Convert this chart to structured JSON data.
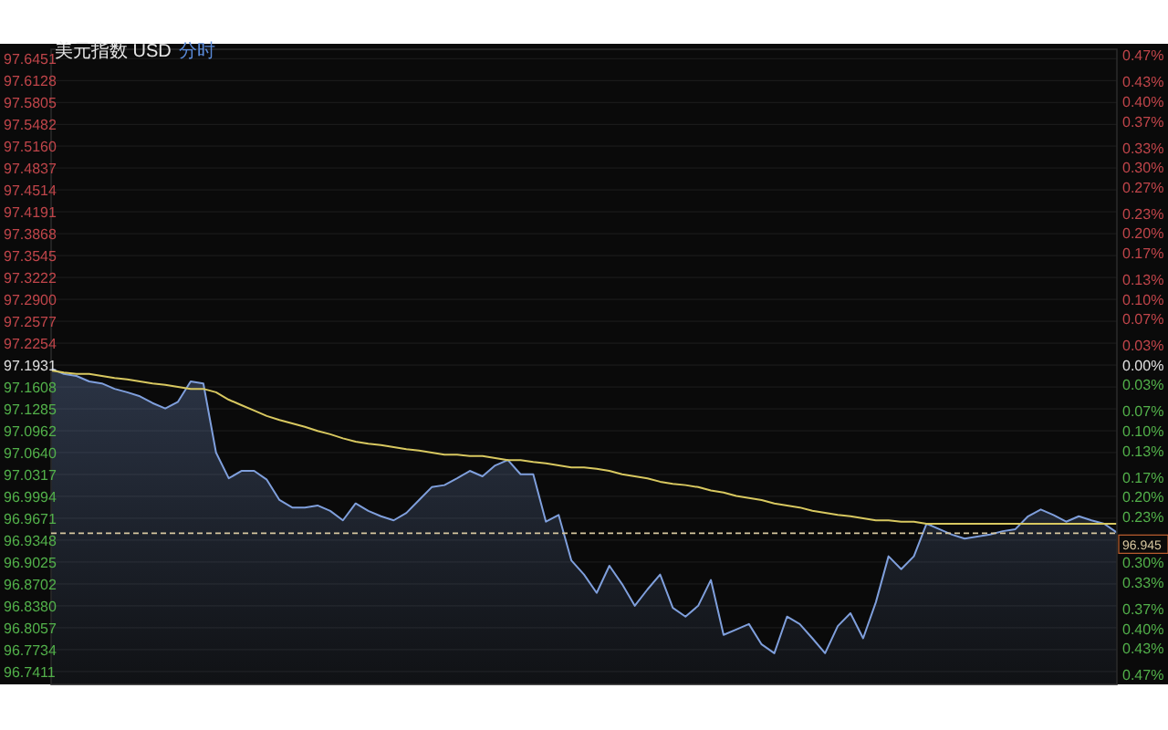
{
  "chart_data": {
    "type": "area",
    "title": "美元指数 USD",
    "subtitle": "分时",
    "categories": [
      null,
      null,
      null,
      null,
      null,
      null,
      null,
      null,
      null,
      null,
      null,
      null,
      null,
      null,
      null,
      null,
      null,
      null,
      null,
      null,
      null,
      null,
      null,
      null,
      null,
      null,
      null,
      null,
      null,
      null,
      null,
      null,
      null,
      null,
      null,
      null,
      null,
      null,
      null,
      null,
      null,
      null,
      null,
      null,
      null,
      null,
      null,
      null,
      null,
      null,
      null,
      null,
      null,
      null,
      null,
      null,
      null,
      null,
      null,
      null,
      null,
      null,
      null,
      null,
      null,
      null,
      null,
      null,
      null,
      null,
      null,
      null,
      null,
      null,
      null,
      null,
      null,
      null,
      null,
      null,
      null,
      null,
      null,
      null,
      null
    ],
    "series": [
      {
        "type": "area",
        "color": "#7f9fdc",
        "values": [
          97.188,
          97.18,
          97.177,
          97.169,
          97.166,
          97.158,
          97.153,
          97.147,
          97.137,
          97.129,
          97.139,
          97.169,
          97.166,
          97.064,
          97.026,
          97.037,
          97.037,
          97.024,
          96.994,
          96.983,
          96.983,
          96.986,
          96.978,
          96.964,
          96.989,
          96.978,
          96.97,
          96.964,
          96.975,
          96.994,
          97.013,
          97.016,
          97.026,
          97.037,
          97.029,
          97.045,
          97.053,
          97.032,
          97.032,
          96.962,
          96.972,
          96.905,
          96.884,
          96.857,
          96.897,
          96.87,
          96.838,
          96.862,
          96.884,
          96.835,
          96.822,
          96.838,
          96.876,
          96.795,
          96.803,
          96.811,
          96.781,
          96.768,
          96.822,
          96.811,
          96.79,
          96.768,
          96.808,
          96.827,
          96.79,
          96.843,
          96.911,
          96.892,
          96.911,
          96.959,
          96.951,
          96.943,
          96.937,
          96.94,
          96.943,
          96.948,
          96.951,
          96.97,
          96.98,
          96.972,
          96.962,
          96.97,
          96.964,
          96.959,
          96.946
        ]
      },
      {
        "type": "line",
        "color": "#d8c860",
        "values": [
          97.185,
          97.182,
          97.18,
          97.18,
          97.177,
          97.174,
          97.172,
          97.169,
          97.166,
          97.164,
          97.161,
          97.158,
          97.158,
          97.153,
          97.142,
          97.134,
          97.126,
          97.118,
          97.112,
          97.107,
          97.102,
          97.096,
          97.091,
          97.085,
          97.08,
          97.077,
          97.075,
          97.072,
          97.069,
          97.067,
          97.064,
          97.061,
          97.061,
          97.059,
          97.059,
          97.056,
          97.053,
          97.053,
          97.05,
          97.048,
          97.045,
          97.042,
          97.042,
          97.04,
          97.037,
          97.032,
          97.029,
          97.026,
          97.021,
          97.018,
          97.016,
          97.013,
          97.008,
          97.005,
          97.0,
          96.997,
          96.994,
          96.989,
          96.986,
          96.983,
          96.978,
          96.975,
          96.972,
          96.97,
          96.967,
          96.964,
          96.964,
          96.962,
          96.962,
          96.959,
          96.959,
          96.959,
          96.959,
          96.959,
          96.959,
          96.959,
          96.959,
          96.959,
          96.959,
          96.959,
          96.959,
          96.959,
          96.959,
          96.959,
          96.959
        ]
      }
    ],
    "ylim": [
      96.722,
      97.659
    ],
    "yticks": [
      97.6451,
      97.6128,
      97.5805,
      97.5482,
      {
        "value": 97.516,
        "label": "97.5160"
      },
      97.4837,
      97.4514,
      97.4191,
      97.3868,
      97.3545,
      97.3222,
      {
        "value": 97.29,
        "label": "97.2900"
      },
      97.2577,
      97.2254,
      97.1931,
      97.1608,
      97.1285,
      97.0962,
      {
        "value": 97.064,
        "label": "97.0640"
      },
      97.0317,
      96.9994,
      96.9671,
      96.9348,
      96.9025,
      96.8702,
      {
        "value": 96.838,
        "label": "96.8380"
      },
      96.8057,
      96.7734,
      96.7411
    ],
    "y2lim": [
      -0.485,
      0.479
    ],
    "y2ticks": [
      {
        "value": 0.47,
        "label": "0.47%"
      },
      {
        "value": 0.43,
        "label": "0.43%"
      },
      {
        "value": 0.4,
        "label": "0.40%"
      },
      {
        "value": 0.37,
        "label": "0.37%"
      },
      {
        "value": 0.33,
        "label": "0.33%"
      },
      {
        "value": 0.3,
        "label": "0.30%"
      },
      {
        "value": 0.27,
        "label": "0.27%"
      },
      {
        "value": 0.23,
        "label": "0.23%"
      },
      {
        "value": 0.2,
        "label": "0.20%"
      },
      {
        "value": 0.17,
        "label": "0.17%"
      },
      {
        "value": 0.13,
        "label": "0.13%"
      },
      {
        "value": 0.1,
        "label": "0.10%"
      },
      {
        "value": 0.07,
        "label": "0.07%"
      },
      {
        "value": 0.03,
        "label": "0.03%"
      },
      {
        "value": 0,
        "label": "0.00%"
      },
      {
        "value": -0.03,
        "label": "0.03%"
      },
      {
        "value": -0.07,
        "label": "0.07%"
      },
      {
        "value": -0.1,
        "label": "0.10%"
      },
      {
        "value": -0.13,
        "label": "0.13%"
      },
      {
        "value": -0.17,
        "label": "0.17%"
      },
      {
        "value": -0.2,
        "label": "0.20%"
      },
      {
        "value": -0.23,
        "label": "0.23%"
      },
      {
        "value": -0.3,
        "label": "0.30%"
      },
      {
        "value": -0.33,
        "label": "0.33%"
      },
      {
        "value": -0.37,
        "label": "0.37%"
      },
      {
        "value": -0.4,
        "label": "0.40%"
      },
      {
        "value": -0.43,
        "label": "0.43%"
      },
      {
        "value": -0.47,
        "label": "0.47%"
      }
    ],
    "ref_lines": [
      {
        "axis": "y",
        "value": 96.945,
        "label": "96.945",
        "color": "#d8c8a0",
        "line_style": "dashed"
      }
    ],
    "grid": "y"
  }
}
